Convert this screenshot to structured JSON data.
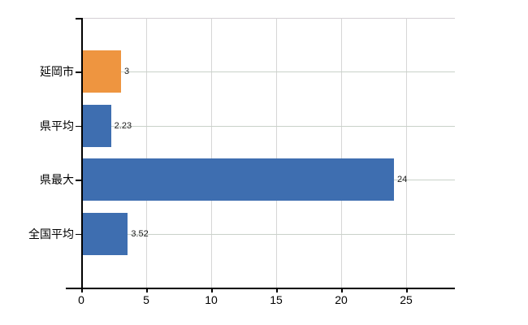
{
  "chart_data": {
    "type": "bar",
    "orientation": "horizontal",
    "title": "",
    "xlabel": "",
    "ylabel": "",
    "categories": [
      "延岡市",
      "県平均",
      "県最大",
      "全国平均"
    ],
    "values": [
      3,
      2.23,
      24,
      3.52
    ],
    "value_labels": [
      "3",
      "2.23",
      "24",
      "3.52"
    ],
    "bar_colors": [
      "#ee9540",
      "#3e6eb0",
      "#3e6eb0",
      "#3e6eb0"
    ],
    "x_ticks": [
      0,
      5,
      10,
      15,
      20,
      25
    ],
    "x_tick_labels": [
      "0",
      "5",
      "10",
      "15",
      "20",
      "25"
    ],
    "xlim": [
      0,
      28.75
    ],
    "grid": true,
    "legend": "none"
  },
  "colors": {
    "background": "#ffffff",
    "axis": "#000000",
    "gridline_vertical": "#d6d6d6",
    "gridline_horizontal": "#c9d1c9",
    "plot_top_border": "#d4cfd4",
    "text": "#000000"
  }
}
